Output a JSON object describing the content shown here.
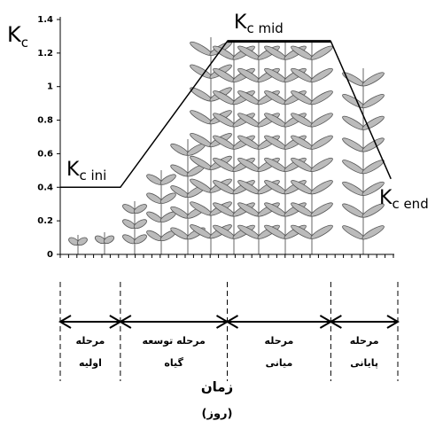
{
  "chart_data": {
    "type": "line",
    "ylabel": {
      "main": "K",
      "sub": "c"
    },
    "x": [
      0,
      18,
      50,
      81,
      99
    ],
    "values": [
      0.4,
      0.4,
      1.27,
      1.27,
      0.45
    ],
    "color": "#000000",
    "xlim": [
      0,
      100
    ],
    "ylim": [
      0,
      1.4
    ],
    "yticks": [
      0,
      0.2,
      0.4,
      0.6,
      0.8,
      1,
      1.2,
      1.4
    ],
    "annotations": [
      {
        "main": "K",
        "sub": "c ini"
      },
      {
        "main": "K",
        "sub": "c mid"
      },
      {
        "main": "K",
        "sub": "c end"
      }
    ],
    "stages": [
      {
        "lines": [
          "مرحله",
          "اولیه"
        ]
      },
      {
        "lines": [
          "مرحله توسعه",
          "گیاه"
        ]
      },
      {
        "lines": [
          "مرحله",
          "میانی"
        ]
      },
      {
        "lines": [
          "مرحله",
          "پایانی"
        ]
      }
    ],
    "xlabel": "زمان",
    "xunit": "(روز)"
  }
}
